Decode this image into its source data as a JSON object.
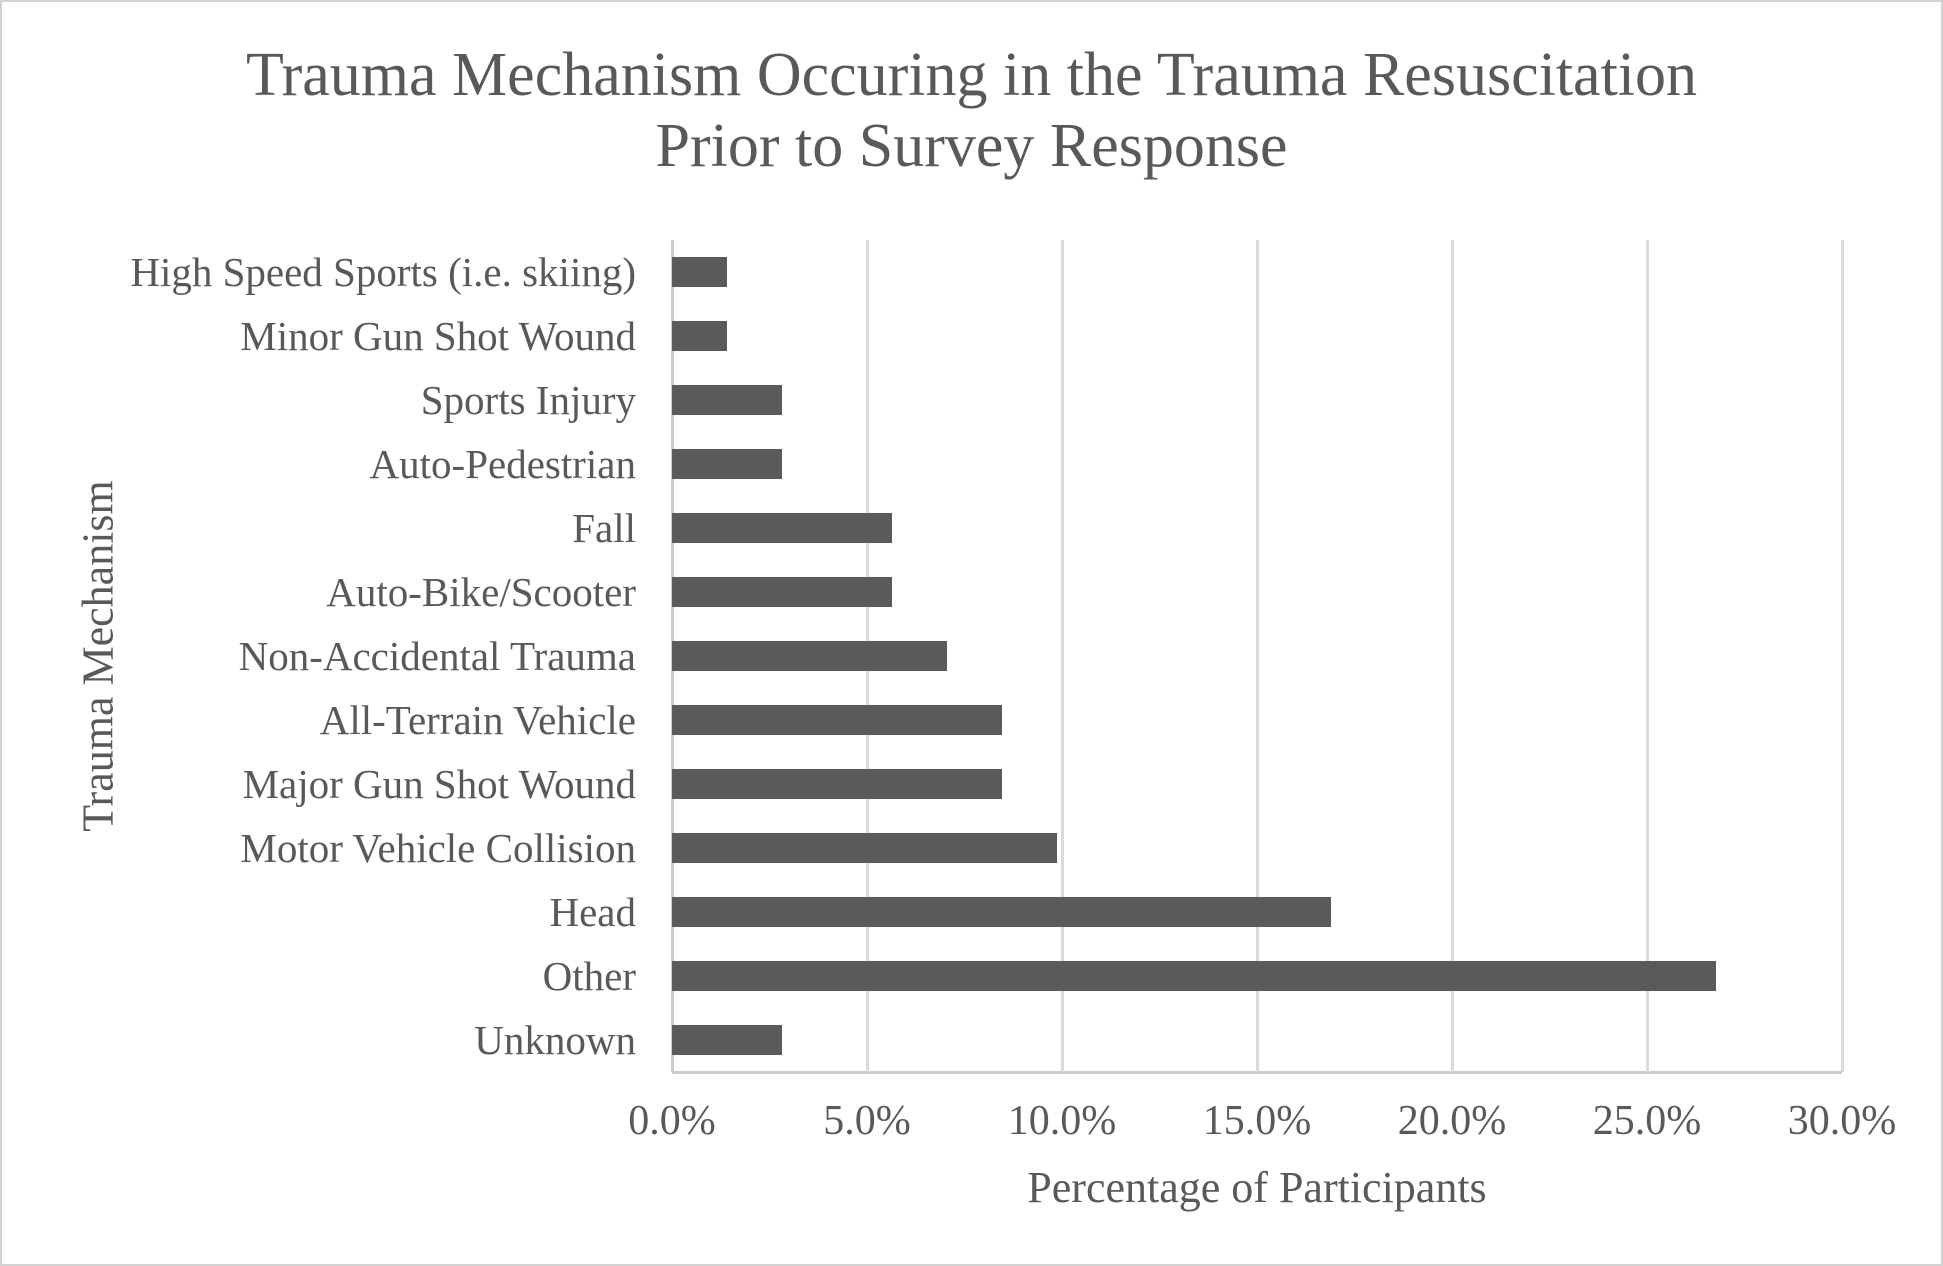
{
  "chart_data": {
    "type": "bar",
    "orientation": "horizontal",
    "title": "Trauma Mechanism Occuring in the Trauma Resuscitation Prior to Survey Response",
    "title_lines": [
      "Trauma Mechanism Occuring in the Trauma Resuscitation",
      "Prior to Survey Response"
    ],
    "xlabel": "Percentage of Participants",
    "ylabel": "Trauma Mechanism",
    "categories": [
      "High Speed Sports (i.e. skiing)",
      "Minor Gun Shot Wound",
      "Sports Injury",
      "Auto-Pedestrian",
      "Fall",
      "Auto-Bike/Scooter",
      "Non-Accidental Trauma",
      "All-Terrain Vehicle",
      "Major Gun Shot Wound",
      "Motor Vehicle Collision",
      "Head",
      "Other",
      "Unknown"
    ],
    "values": [
      1.41,
      1.41,
      2.82,
      2.82,
      5.63,
      5.63,
      7.04,
      8.45,
      8.45,
      9.86,
      16.9,
      26.76,
      2.82
    ],
    "value_unit": "%",
    "xlim": [
      0,
      30
    ],
    "xticks": [
      "0.0%",
      "5.0%",
      "10.0%",
      "15.0%",
      "20.0%",
      "25.0%",
      "30.0%"
    ],
    "xtick_values": [
      0,
      5,
      10,
      15,
      20,
      25,
      30
    ],
    "grid": "vertical-gridlines-on",
    "legend": "none",
    "colors": {
      "bar": "#5a5a5a",
      "gridline": "#dadada",
      "axis_line": "#cccccc",
      "text": "#595959",
      "background": "#ffffff",
      "border": "#d2d2d2"
    }
  }
}
